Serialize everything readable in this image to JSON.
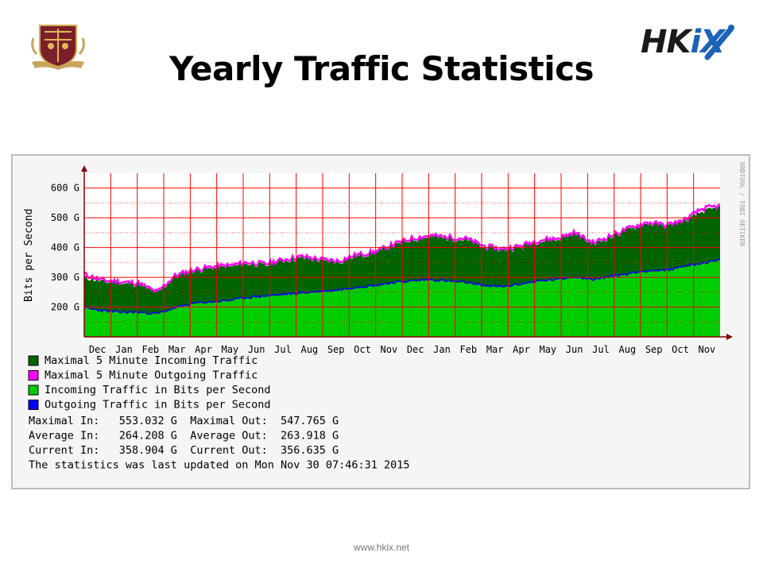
{
  "title": "Yearly Traffic Statistics",
  "footer_url": "www.hkix.net",
  "logos": {
    "left": "university-crest-icon",
    "right_text_hk": "HK",
    "right_text_ix": "iX"
  },
  "watermark": "RRDTOOL / TOBI OETIKER",
  "colors": {
    "max_in": "#006400",
    "max_out": "#ff00ff",
    "avg_in": "#00cc00",
    "avg_out": "#0000ff",
    "grid": "#ff0000",
    "plot_bg": "#ffffff"
  },
  "legend": [
    {
      "label": "Maximal 5 Minute Incoming Traffic",
      "color": "#006400"
    },
    {
      "label": "Maximal 5 Minute Outgoing Traffic",
      "color": "#ff00ff"
    },
    {
      "label": "Incoming Traffic in Bits per Second",
      "color": "#00cc00"
    },
    {
      "label": "Outgoing Traffic in Bits per Second",
      "color": "#0000ff"
    }
  ],
  "stats_lines": [
    "Maximal In:   553.032 G  Maximal Out:  547.765 G",
    "Average In:   264.208 G  Average Out:  263.918 G",
    "Current In:   358.904 G  Current Out:  356.635 G",
    "The statistics was last updated on Mon Nov 30 07:46:31 2015"
  ],
  "chart_data": {
    "type": "area",
    "title": "",
    "xlabel": "",
    "ylabel": "Bits per Second",
    "ylim": [
      100,
      650
    ],
    "y_ticks": [
      {
        "value": 200,
        "label": "200 G"
      },
      {
        "value": 300,
        "label": "300 G"
      },
      {
        "value": 400,
        "label": "400 G"
      },
      {
        "value": 500,
        "label": "500 G"
      },
      {
        "value": 600,
        "label": "600 G"
      }
    ],
    "x_ticks": [
      "Dec",
      "Jan",
      "Feb",
      "Mar",
      "Apr",
      "May",
      "Jun",
      "Jul",
      "Aug",
      "Sep",
      "Oct",
      "Nov",
      "Dec",
      "Jan",
      "Feb",
      "Mar",
      "Apr",
      "May",
      "Jun",
      "Jul",
      "Aug",
      "Sep",
      "Oct",
      "Nov"
    ],
    "grid": true,
    "series": [
      {
        "name": "Maximal 5 Minute Incoming Traffic",
        "values": [
          300,
          285,
          280,
          275,
          245,
          300,
          320,
          330,
          335,
          345,
          340,
          355,
          365,
          355,
          350,
          370,
          380,
          405,
          425,
          435,
          430,
          425,
          400,
          390,
          400,
          420,
          425,
          445,
          410,
          435,
          460,
          480,
          470,
          485,
          520,
          535
        ]
      },
      {
        "name": "Maximal 5 Minute Outgoing Traffic",
        "values": [
          310,
          290,
          285,
          280,
          250,
          305,
          325,
          335,
          340,
          350,
          345,
          360,
          370,
          360,
          355,
          375,
          385,
          410,
          430,
          440,
          435,
          430,
          405,
          395,
          405,
          425,
          430,
          450,
          415,
          440,
          465,
          485,
          475,
          490,
          530,
          540
        ]
      },
      {
        "name": "Incoming Traffic in Bits per Second",
        "values": [
          195,
          185,
          180,
          180,
          175,
          195,
          210,
          215,
          220,
          230,
          235,
          240,
          245,
          250,
          255,
          265,
          270,
          280,
          285,
          290,
          285,
          280,
          270,
          265,
          275,
          285,
          290,
          300,
          290,
          300,
          310,
          320,
          320,
          335,
          345,
          355
        ]
      },
      {
        "name": "Outgoing Traffic in Bits per Second",
        "values": [
          198,
          188,
          183,
          183,
          178,
          198,
          213,
          218,
          223,
          233,
          238,
          243,
          248,
          253,
          258,
          268,
          273,
          283,
          288,
          293,
          288,
          283,
          273,
          268,
          278,
          288,
          293,
          303,
          293,
          303,
          313,
          323,
          323,
          338,
          348,
          358
        ]
      }
    ]
  }
}
